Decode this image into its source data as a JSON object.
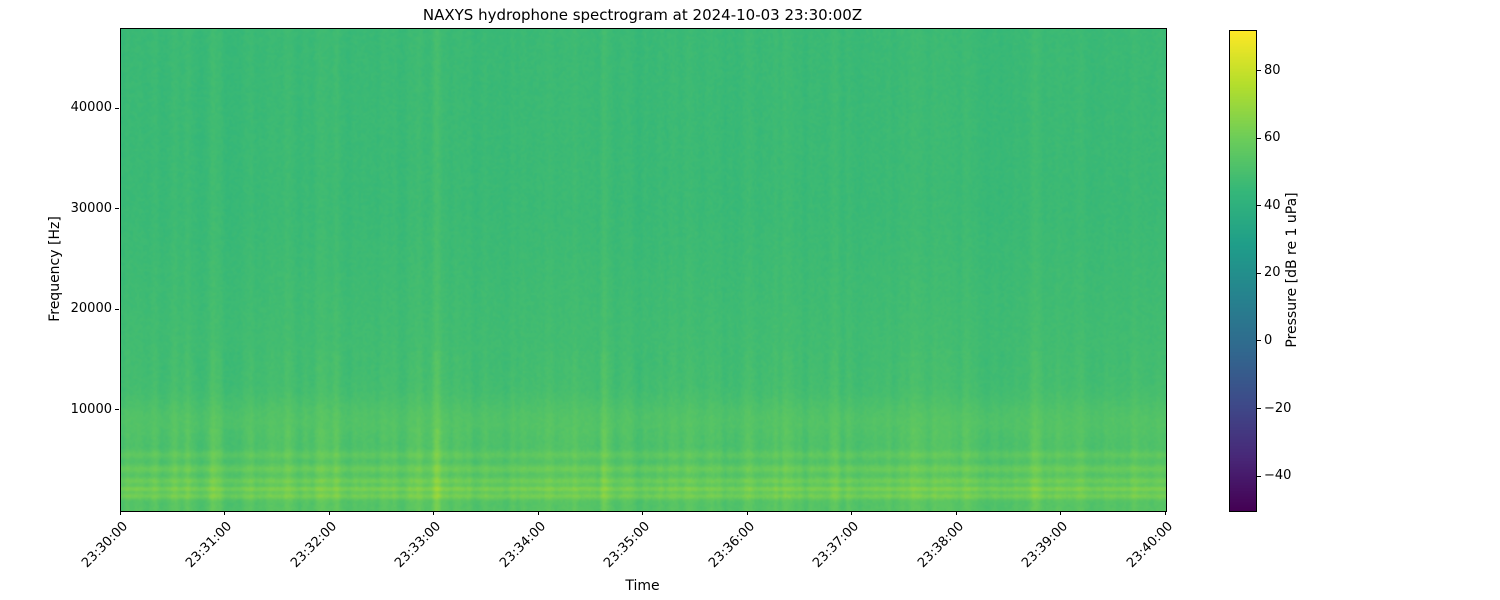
{
  "chart_data": {
    "type": "heatmap",
    "title": "NAXYS hydrophone spectrogram at 2024-10-03 23:30:00Z",
    "xlabel": "Time",
    "ylabel": "Frequency [Hz]",
    "x_ticks": [
      "23:30:00",
      "23:31:00",
      "23:32:00",
      "23:33:00",
      "23:34:00",
      "23:35:00",
      "23:36:00",
      "23:37:00",
      "23:38:00",
      "23:39:00",
      "23:40:00"
    ],
    "x_range_minutes": [
      0,
      10
    ],
    "y_ticks": [
      {
        "value": 10000,
        "label": "10000"
      },
      {
        "value": 20000,
        "label": "20000"
      },
      {
        "value": 30000,
        "label": "30000"
      },
      {
        "value": 40000,
        "label": "40000"
      }
    ],
    "ylim": [
      0,
      48000
    ],
    "grid": false,
    "colorbar": {
      "label": "Pressure [dB re 1 uPa]",
      "colormap": "viridis",
      "vmin": -50,
      "vmax": 92,
      "ticks": [
        {
          "value": 80,
          "label": "80"
        },
        {
          "value": 60,
          "label": "60"
        },
        {
          "value": 40,
          "label": "40"
        },
        {
          "value": 20,
          "label": "20"
        },
        {
          "value": 0,
          "label": "0"
        },
        {
          "value": -20,
          "label": "−20"
        },
        {
          "value": -40,
          "label": "−40"
        }
      ]
    },
    "texture": {
      "hf_base_db": 46.5,
      "mid_base_db": 49,
      "lf_base_db": 54,
      "bands": [
        {
          "center_hz": 1400,
          "width_hz": 220,
          "boost_db": 9
        },
        {
          "center_hz": 2100,
          "width_hz": 180,
          "boost_db": 11
        },
        {
          "center_hz": 2900,
          "width_hz": 260,
          "boost_db": 8
        },
        {
          "center_hz": 4100,
          "width_hz": 320,
          "boost_db": 7
        },
        {
          "center_hz": 5500,
          "width_hz": 300,
          "boost_db": 5
        },
        {
          "center_hz": 9000,
          "width_hz": 1500,
          "boost_db": 3
        }
      ],
      "stripe_gain_low_db": 9,
      "stripe_gain_mid_db": 6,
      "stripe_gain_high_db": 3.5,
      "cell_noise_db": 2.5,
      "broadband_event_probability": 0.05
    },
    "colors": {
      "background": "#ffffff",
      "text": "#000000",
      "axis": "#000000"
    }
  }
}
